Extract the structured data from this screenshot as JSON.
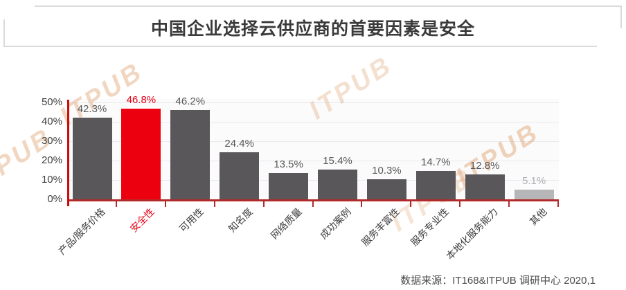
{
  "title": "中国企业选择云供应商的首要因素是安全",
  "source": "数据来源：IT168&ITPUB 调研中心 2020,1",
  "watermark": {
    "text": "ITPUB",
    "color": "#e2a878"
  },
  "chart_data": {
    "type": "bar",
    "title": "中国企业选择云供应商的首要因素是安全",
    "categories": [
      "产品/服务价格",
      "安全性",
      "可用性",
      "知名度",
      "网络质量",
      "成功案例",
      "服务丰富性",
      "服务专业性",
      "本地化服务能力",
      "其他"
    ],
    "values": [
      42.3,
      46.8,
      46.2,
      24.4,
      13.5,
      15.4,
      10.3,
      14.7,
      12.8,
      5.1
    ],
    "value_labels": [
      "42.3%",
      "46.8%",
      "46.2%",
      "24.4%",
      "13.5%",
      "15.4%",
      "10.3%",
      "14.7%",
      "12.8%",
      "5.1%"
    ],
    "highlight_index": 1,
    "muted_index": 9,
    "xlabel": "",
    "ylabel": "",
    "ylim": [
      0,
      50
    ],
    "y_ticks": [
      "0%",
      "10%",
      "20%",
      "30%",
      "40%",
      "50%"
    ],
    "grid": true,
    "legend": null,
    "colors": {
      "bar": "#595759",
      "highlight": "#ec0010",
      "muted": "#b6b5b7",
      "value_label": "#595757",
      "highlight_label": "#e60014",
      "muted_label": "#b0aeb0",
      "category_label": "#3d3d3d",
      "y_axis": "#cf0a0a",
      "x_axis": "#b22a2a",
      "gridline": "#e9e9ee",
      "plot_bg": "#fbfbfc"
    }
  }
}
